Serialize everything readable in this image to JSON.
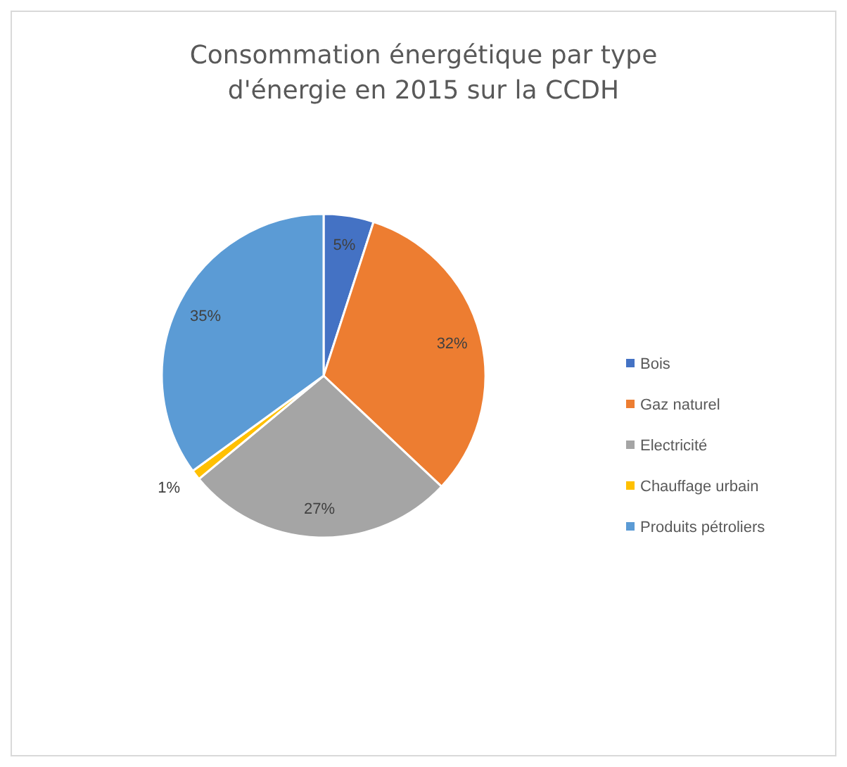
{
  "chart_data": {
    "type": "pie",
    "title": "Consommation énergétique par type d'énergie en 2015 sur la CCDH",
    "categories": [
      "Bois",
      "Gaz naturel",
      "Electricité",
      "Chauffage urbain",
      "Produits pétroliers"
    ],
    "values": [
      5,
      32,
      27,
      1,
      35
    ],
    "colors": [
      "#4472c4",
      "#ed7d31",
      "#a5a5a5",
      "#ffc000",
      "#5b9bd5"
    ],
    "value_labels": [
      "5%",
      "32%",
      "27%",
      "1%",
      "35%"
    ],
    "legend": "right"
  }
}
